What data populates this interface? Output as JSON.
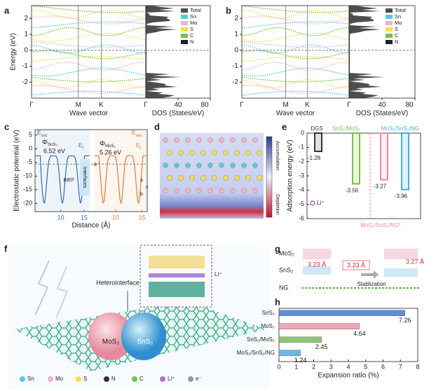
{
  "panel_labels": [
    "a",
    "b",
    "c",
    "d",
    "e",
    "f",
    "g",
    "h"
  ],
  "chart_data": [
    {
      "type": "band",
      "ylabel": "Energy (eV)",
      "xlabel": "Wave vector",
      "dos_label": "DOS (States/eV)",
      "kpath": [
        "Γ",
        "M",
        "K",
        "Γ"
      ],
      "ylim": [
        -3,
        2.8
      ],
      "yticks": [
        -2,
        -1,
        0,
        1,
        2
      ],
      "dos_lim": [
        0,
        80
      ],
      "dos_ticks": [
        40,
        80
      ],
      "legend": [
        {
          "name": "Total",
          "color": "#4d4d4d"
        },
        {
          "name": "Sn",
          "color": "#5bc8e0"
        },
        {
          "name": "Mo",
          "color": "#f4b3c2"
        },
        {
          "name": "S",
          "color": "#f0e04a"
        },
        {
          "name": "C",
          "color": "#7bc043"
        },
        {
          "name": "N",
          "color": "#222222"
        }
      ]
    },
    {
      "type": "band",
      "xlabel": "Wave vector",
      "dos_label": "DOS (States/eV)",
      "kpath": [
        "Γ",
        "M",
        "K",
        "Γ"
      ],
      "ylim": [
        -3,
        2.8
      ],
      "yticks": [
        -2,
        -1,
        0,
        1,
        2
      ],
      "dos_lim": [
        0,
        80
      ],
      "dos_ticks": [
        40,
        80
      ],
      "legend": [
        {
          "name": "Total",
          "color": "#4d4d4d"
        },
        {
          "name": "Sn",
          "color": "#5bc8e0"
        },
        {
          "name": "Mo",
          "color": "#f4b3c2"
        },
        {
          "name": "S",
          "color": "#f0e04a"
        },
        {
          "name": "C",
          "color": "#7bc043"
        },
        {
          "name": "N",
          "color": "#222222"
        }
      ]
    },
    {
      "type": "potential",
      "ylabel": "Electrostatic potential (eV)",
      "xlabel": "Distance (Å)",
      "ylim": [
        -23,
        7
      ],
      "yticks": [
        -20,
        -15,
        -10,
        -5,
        0,
        5
      ],
      "segments": [
        {
          "xlim": [
            4.5,
            16.2
          ],
          "xticks": [
            10,
            15
          ],
          "color": "#2f6db5"
        },
        {
          "xlim": [
            6,
            16
          ],
          "xticks": [
            10,
            15
          ],
          "color": "#e07b39"
        }
      ],
      "annotations": {
        "vac_left": {
          "main": "E",
          "sub": "vac"
        },
        "vac_right": {
          "main": "E",
          "sub": "vac"
        },
        "phi_left": {
          "main": "Φ",
          "sub": "SnS₂"
        },
        "phi_left_value": "6.52 eV",
        "phi_right": {
          "main": "Φ",
          "sub": "MoS₂"
        },
        "phi_right_value": "5.26 eV",
        "ef_left": {
          "main": "E",
          "sub": "f"
        },
        "ef_right": {
          "main": "E",
          "sub": "f"
        },
        "interfaces": "Interfaces",
        "electron": "e⁻",
        "bief": "BIEF",
        "axes": [
          "a",
          "c",
          "b"
        ]
      }
    },
    {
      "type": "bar",
      "ylabel": "Adsorption energy (eV)",
      "categories": [
        "DGS",
        "SnS₂/MoS₂",
        "MoS₂/SnS₂/NG*",
        "MoS₂/SnS₂/NG"
      ],
      "values": [
        -1.28,
        -3.56,
        -3.27,
        -3.96
      ],
      "colors": [
        "#333333",
        "#7bc043",
        "#f08a9c",
        "#3fb2e0"
      ],
      "ylim": [
        -6,
        0
      ],
      "yticks": [
        -6,
        -5,
        -4,
        -3,
        -2,
        -1,
        0
      ],
      "marker_label": "Li⁺"
    },
    {
      "type": "hbar",
      "categories": [
        "SnS₂",
        "MoS₂",
        "SnS₂/MoS₂",
        "MoS₂/SnS₂/NG"
      ],
      "values": [
        7.26,
        4.64,
        2.45,
        1.24
      ],
      "colors": [
        "#5b8fd9",
        "#f0a7b5",
        "#8dc96b",
        "#6cb8e6"
      ],
      "xlim": [
        0,
        8
      ],
      "xticks": [
        0,
        1,
        2,
        3,
        4,
        5,
        6,
        7,
        8
      ],
      "xlabel": "Expansion ratio (%)"
    }
  ],
  "panel_d": {
    "accumulation": "Accumulation",
    "depletion": "Depletion"
  },
  "panel_f": {
    "heterointerface": "Heterointerface",
    "li": "Li⁺",
    "left_sphere": "MoS₂",
    "right_sphere": "SnS₂",
    "legend": [
      "Sn",
      "Mo",
      "S",
      "N",
      "C",
      "Li⁺",
      "e⁻"
    ]
  },
  "panel_g": {
    "top_layer": "MoS₂",
    "mid_layer": "SnS₂",
    "bottom_layer": "NG",
    "gap_left": "3.23 Å",
    "gap_mid": "3.23 Å",
    "gap_right": "3.27 Å",
    "step": "Stablization"
  }
}
